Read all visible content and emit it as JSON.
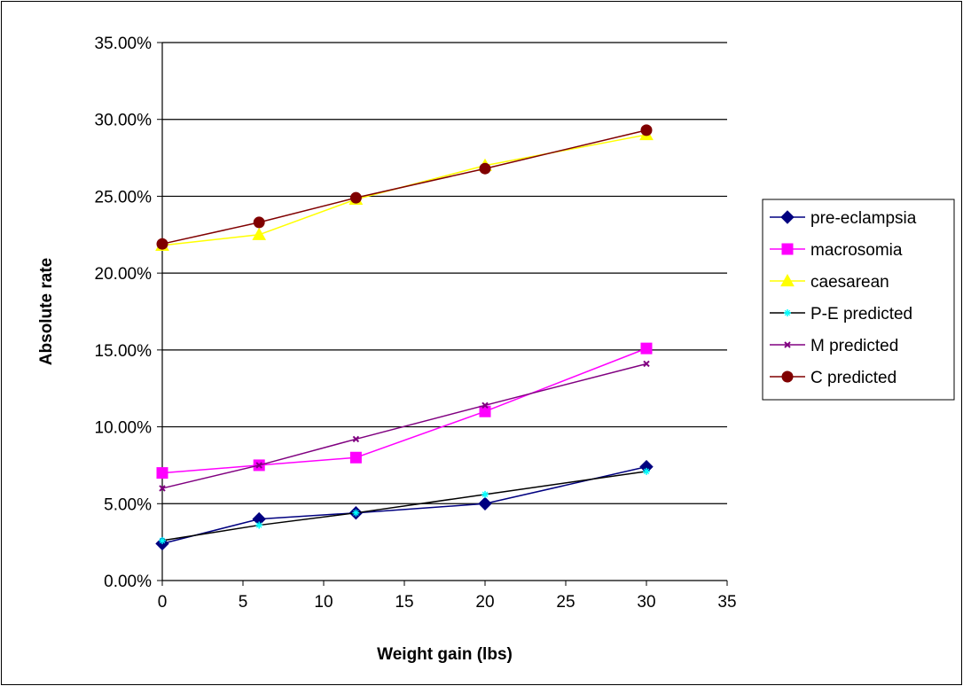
{
  "chart_data": {
    "type": "line",
    "xlabel": "Weight gain (lbs)",
    "ylabel": "Absolute rate",
    "xlim": [
      0,
      35
    ],
    "ylim": [
      0,
      0.35
    ],
    "x_ticks": [
      "0",
      "5",
      "10",
      "15",
      "20",
      "25",
      "30",
      "35"
    ],
    "y_ticks": [
      "0.00%",
      "5.00%",
      "10.00%",
      "15.00%",
      "20.00%",
      "25.00%",
      "30.00%",
      "35.00%"
    ],
    "grid": "horizontal",
    "legend_position": "right",
    "series": [
      {
        "name": "pre-eclampsia",
        "color": "#000080",
        "marker": "diamond",
        "x": [
          0,
          6,
          12,
          20,
          30
        ],
        "y": [
          0.024,
          0.04,
          0.044,
          0.05,
          0.074
        ]
      },
      {
        "name": "macrosomia",
        "color": "#FF00FF",
        "marker": "square",
        "x": [
          0,
          6,
          12,
          20,
          30
        ],
        "y": [
          0.07,
          0.075,
          0.08,
          0.11,
          0.151
        ]
      },
      {
        "name": "caesarean",
        "color": "#FFFF00",
        "marker": "triangle",
        "x": [
          0,
          6,
          12,
          20,
          30
        ],
        "y": [
          0.218,
          0.225,
          0.248,
          0.27,
          0.29
        ]
      },
      {
        "name": "P-E predicted",
        "color": "#00FFFF",
        "line_color": "#000000",
        "marker": "star",
        "x": [
          0,
          6,
          12,
          20,
          30
        ],
        "y": [
          0.026,
          0.036,
          0.044,
          0.056,
          0.071
        ]
      },
      {
        "name": "M predicted",
        "color": "#800080",
        "marker": "x",
        "x": [
          0,
          6,
          12,
          20,
          30
        ],
        "y": [
          0.06,
          0.075,
          0.092,
          0.114,
          0.141
        ]
      },
      {
        "name": "C predicted",
        "color": "#800000",
        "marker": "circle",
        "x": [
          0,
          6,
          12,
          20,
          30
        ],
        "y": [
          0.219,
          0.233,
          0.249,
          0.268,
          0.293
        ]
      }
    ]
  }
}
